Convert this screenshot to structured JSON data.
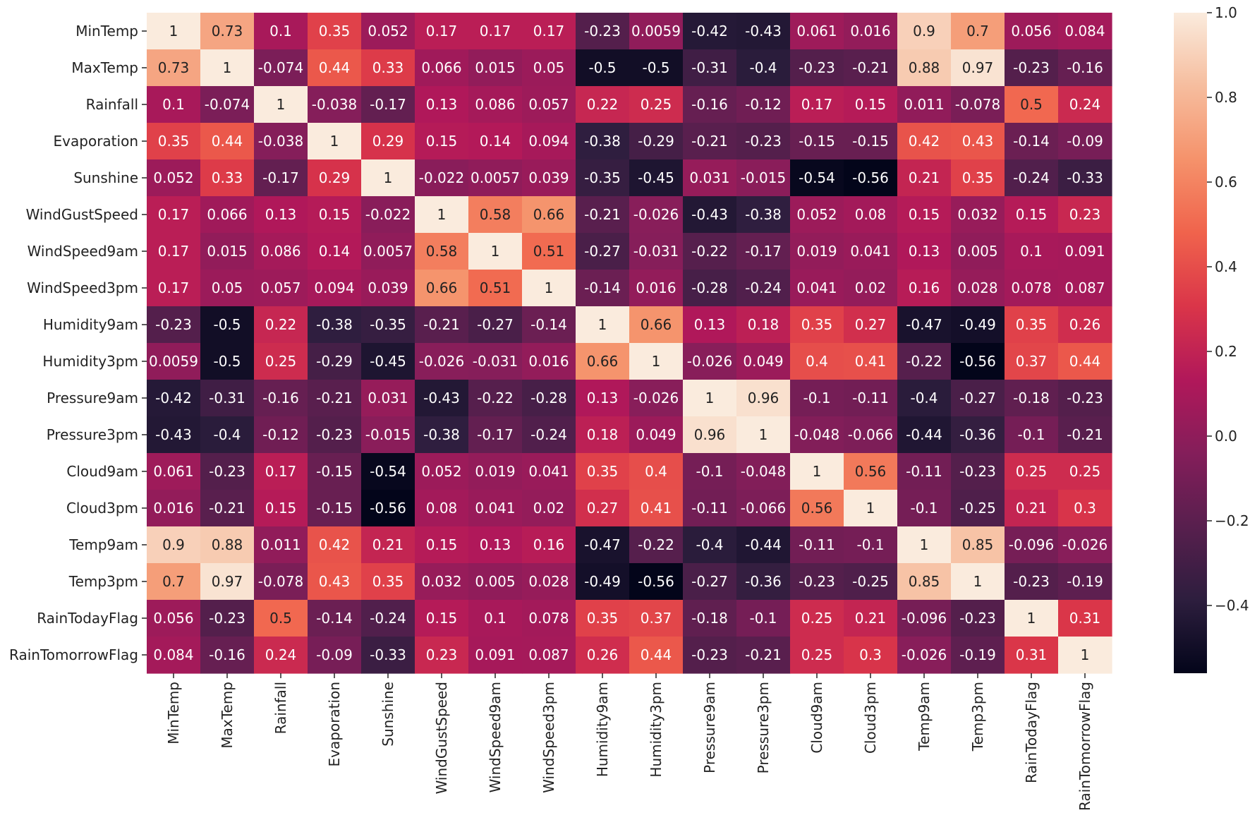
{
  "chart_data": {
    "type": "heatmap",
    "title": "",
    "xlabel": "",
    "ylabel": "",
    "variables": [
      "MinTemp",
      "MaxTemp",
      "Rainfall",
      "Evaporation",
      "Sunshine",
      "WindGustSpeed",
      "WindSpeed9am",
      "WindSpeed3pm",
      "Humidity9am",
      "Humidity3pm",
      "Pressure9am",
      "Pressure3pm",
      "Cloud9am",
      "Cloud3pm",
      "Temp9am",
      "Temp3pm",
      "RainTodayFlag",
      "RainTomorrowFlag"
    ],
    "matrix": [
      [
        "1",
        "0.73",
        "0.1",
        "0.35",
        "0.052",
        "0.17",
        "0.17",
        "0.17",
        "-0.23",
        "0.0059",
        "-0.42",
        "-0.43",
        "0.061",
        "0.016",
        "0.9",
        "0.7",
        "0.056",
        "0.084"
      ],
      [
        "0.73",
        "1",
        "-0.074",
        "0.44",
        "0.33",
        "0.066",
        "0.015",
        "0.05",
        "-0.5",
        "-0.5",
        "-0.31",
        "-0.4",
        "-0.23",
        "-0.21",
        "0.88",
        "0.97",
        "-0.23",
        "-0.16"
      ],
      [
        "0.1",
        "-0.074",
        "1",
        "-0.038",
        "-0.17",
        "0.13",
        "0.086",
        "0.057",
        "0.22",
        "0.25",
        "-0.16",
        "-0.12",
        "0.17",
        "0.15",
        "0.011",
        "-0.078",
        "0.5",
        "0.24"
      ],
      [
        "0.35",
        "0.44",
        "-0.038",
        "1",
        "0.29",
        "0.15",
        "0.14",
        "0.094",
        "-0.38",
        "-0.29",
        "-0.21",
        "-0.23",
        "-0.15",
        "-0.15",
        "0.42",
        "0.43",
        "-0.14",
        "-0.09"
      ],
      [
        "0.052",
        "0.33",
        "-0.17",
        "0.29",
        "1",
        "-0.022",
        "0.0057",
        "0.039",
        "-0.35",
        "-0.45",
        "0.031",
        "-0.015",
        "-0.54",
        "-0.56",
        "0.21",
        "0.35",
        "-0.24",
        "-0.33"
      ],
      [
        "0.17",
        "0.066",
        "0.13",
        "0.15",
        "-0.022",
        "1",
        "0.58",
        "0.66",
        "-0.21",
        "-0.026",
        "-0.43",
        "-0.38",
        "0.052",
        "0.08",
        "0.15",
        "0.032",
        "0.15",
        "0.23"
      ],
      [
        "0.17",
        "0.015",
        "0.086",
        "0.14",
        "0.0057",
        "0.58",
        "1",
        "0.51",
        "-0.27",
        "-0.031",
        "-0.22",
        "-0.17",
        "0.019",
        "0.041",
        "0.13",
        "0.005",
        "0.1",
        "0.091"
      ],
      [
        "0.17",
        "0.05",
        "0.057",
        "0.094",
        "0.039",
        "0.66",
        "0.51",
        "1",
        "-0.14",
        "0.016",
        "-0.28",
        "-0.24",
        "0.041",
        "0.02",
        "0.16",
        "0.028",
        "0.078",
        "0.087"
      ],
      [
        "-0.23",
        "-0.5",
        "0.22",
        "-0.38",
        "-0.35",
        "-0.21",
        "-0.27",
        "-0.14",
        "1",
        "0.66",
        "0.13",
        "0.18",
        "0.35",
        "0.27",
        "-0.47",
        "-0.49",
        "0.35",
        "0.26"
      ],
      [
        "0.0059",
        "-0.5",
        "0.25",
        "-0.29",
        "-0.45",
        "-0.026",
        "-0.031",
        "0.016",
        "0.66",
        "1",
        "-0.026",
        "0.049",
        "0.4",
        "0.41",
        "-0.22",
        "-0.56",
        "0.37",
        "0.44"
      ],
      [
        "-0.42",
        "-0.31",
        "-0.16",
        "-0.21",
        "0.031",
        "-0.43",
        "-0.22",
        "-0.28",
        "0.13",
        "-0.026",
        "1",
        "0.96",
        "-0.1",
        "-0.11",
        "-0.4",
        "-0.27",
        "-0.18",
        "-0.23"
      ],
      [
        "-0.43",
        "-0.4",
        "-0.12",
        "-0.23",
        "-0.015",
        "-0.38",
        "-0.17",
        "-0.24",
        "0.18",
        "0.049",
        "0.96",
        "1",
        "-0.048",
        "-0.066",
        "-0.44",
        "-0.36",
        "-0.1",
        "-0.21"
      ],
      [
        "0.061",
        "-0.23",
        "0.17",
        "-0.15",
        "-0.54",
        "0.052",
        "0.019",
        "0.041",
        "0.35",
        "0.4",
        "-0.1",
        "-0.048",
        "1",
        "0.56",
        "-0.11",
        "-0.23",
        "0.25",
        "0.25"
      ],
      [
        "0.016",
        "-0.21",
        "0.15",
        "-0.15",
        "-0.56",
        "0.08",
        "0.041",
        "0.02",
        "0.27",
        "0.41",
        "-0.11",
        "-0.066",
        "0.56",
        "1",
        "-0.1",
        "-0.25",
        "0.21",
        "0.3"
      ],
      [
        "0.9",
        "0.88",
        "0.011",
        "0.42",
        "0.21",
        "0.15",
        "0.13",
        "0.16",
        "-0.47",
        "-0.22",
        "-0.4",
        "-0.44",
        "-0.11",
        "-0.1",
        "1",
        "0.85",
        "-0.096",
        "-0.026"
      ],
      [
        "0.7",
        "0.97",
        "-0.078",
        "0.43",
        "0.35",
        "0.032",
        "0.005",
        "0.028",
        "-0.49",
        "-0.56",
        "-0.27",
        "-0.36",
        "-0.23",
        "-0.25",
        "0.85",
        "1",
        "-0.23",
        "-0.19"
      ],
      [
        "0.056",
        "-0.23",
        "0.5",
        "-0.14",
        "-0.24",
        "0.15",
        "0.1",
        "0.078",
        "0.35",
        "0.37",
        "-0.18",
        "-0.1",
        "0.25",
        "0.21",
        "-0.096",
        "-0.23",
        "1",
        "0.31"
      ],
      [
        "0.084",
        "-0.16",
        "0.24",
        "-0.09",
        "-0.33",
        "0.23",
        "0.091",
        "0.087",
        "0.26",
        "0.44",
        "-0.23",
        "-0.21",
        "0.25",
        "0.3",
        "-0.026",
        "-0.19",
        "0.31",
        "1"
      ]
    ],
    "colorbar": {
      "vmin": -0.56,
      "vmax": 1.0,
      "ticks": [
        1.0,
        0.8,
        0.6,
        0.4,
        0.2,
        0.0,
        -0.2,
        -0.4
      ],
      "tick_labels": [
        "1.0",
        "0.8",
        "0.6",
        "0.4",
        "0.2",
        "0.0",
        "−0.2",
        "−0.4"
      ]
    },
    "colormap": "rocket",
    "colormap_stops": [
      "#03051a",
      "#2d1e3e",
      "#581f4e",
      "#841e5a",
      "#b1185a",
      "#da3549",
      "#f0634c",
      "#f5926b",
      "#f6bd9e",
      "#faebdd"
    ],
    "annotation_dark_text": "#222222",
    "annotation_light_text": "#ffffff"
  }
}
